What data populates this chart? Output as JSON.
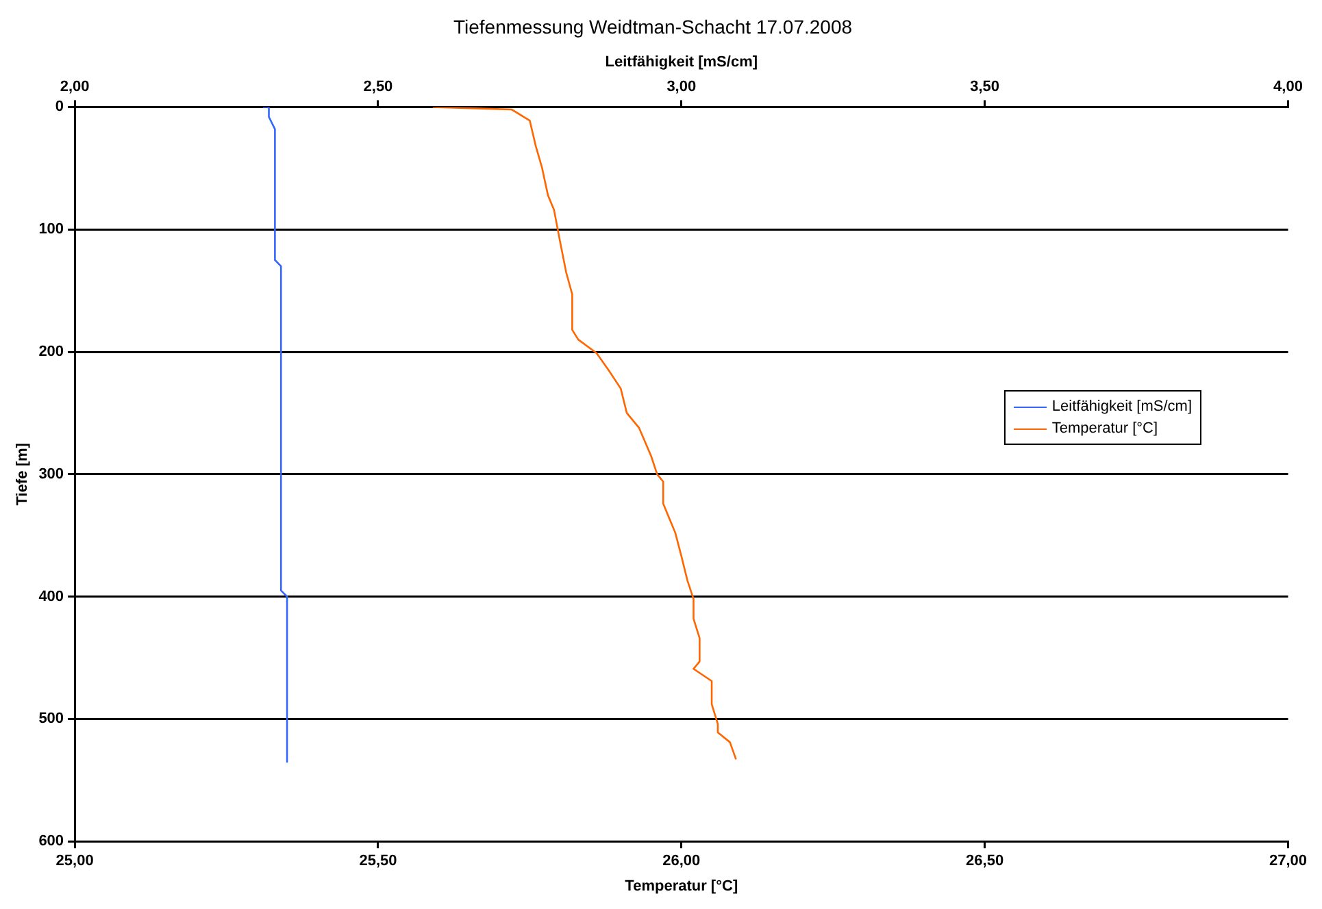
{
  "chart_data": {
    "type": "line",
    "title": "Tiefenmessung Weidtman-Schacht 17.07.2008",
    "xlabel": "Temperatur [°C]",
    "x2label": "Leitfähigkeit [mS/cm]",
    "ylabel": "Tiefe [m]",
    "xlim": [
      25,
      27
    ],
    "xticks": [
      {
        "value": 25,
        "label": "25,00"
      },
      {
        "value": 25.5,
        "label": "25,50"
      },
      {
        "value": 26,
        "label": "26,00"
      },
      {
        "value": 26.5,
        "label": "26,50"
      },
      {
        "value": 27,
        "label": "27,00"
      }
    ],
    "x2lim": [
      2,
      4
    ],
    "x2ticks": [
      {
        "value": 2,
        "label": "2,00"
      },
      {
        "value": 2.5,
        "label": "2,50"
      },
      {
        "value": 3,
        "label": "3,00"
      },
      {
        "value": 3.5,
        "label": "3,50"
      },
      {
        "value": 4,
        "label": "4,00"
      }
    ],
    "ylim": [
      600,
      0
    ],
    "yticks": [
      0,
      100,
      200,
      300,
      400,
      500,
      600
    ],
    "grid": "y",
    "legend": "right",
    "marker": "none",
    "line_style": "solid",
    "series": [
      {
        "name": "Leitfähigkeit [mS/cm]",
        "color": "#3366ff",
        "axis": "x2",
        "x": [
          2.31,
          2.32,
          2.32,
          2.33,
          2.33,
          2.34,
          2.34,
          2.35,
          2.35
        ],
        "values": [
          0,
          0,
          8,
          18,
          125,
          130,
          395,
          400,
          535
        ]
      },
      {
        "name": "Temperatur [°C]",
        "color": "#ff6600",
        "x": [
          25.59,
          25.72,
          25.75,
          25.76,
          25.77,
          25.78,
          25.79,
          25.8,
          25.81,
          25.82,
          25.82,
          25.83,
          25.86,
          25.88,
          25.9,
          25.91,
          25.93,
          25.95,
          25.96,
          25.97,
          25.97,
          25.98,
          25.99,
          26,
          26.01,
          26.02,
          26.02,
          26.03,
          26.03,
          26.02,
          26.05,
          26.05,
          26.06,
          26.06,
          26.08,
          26.09
        ],
        "values": [
          0,
          2,
          11,
          32,
          49,
          72,
          84,
          110,
          135,
          153,
          182,
          190,
          201,
          215,
          230,
          250,
          262,
          285,
          300,
          306,
          324,
          336,
          348,
          367,
          387,
          402,
          418,
          434,
          453,
          459,
          469,
          488,
          504,
          511,
          519,
          533
        ]
      }
    ]
  }
}
